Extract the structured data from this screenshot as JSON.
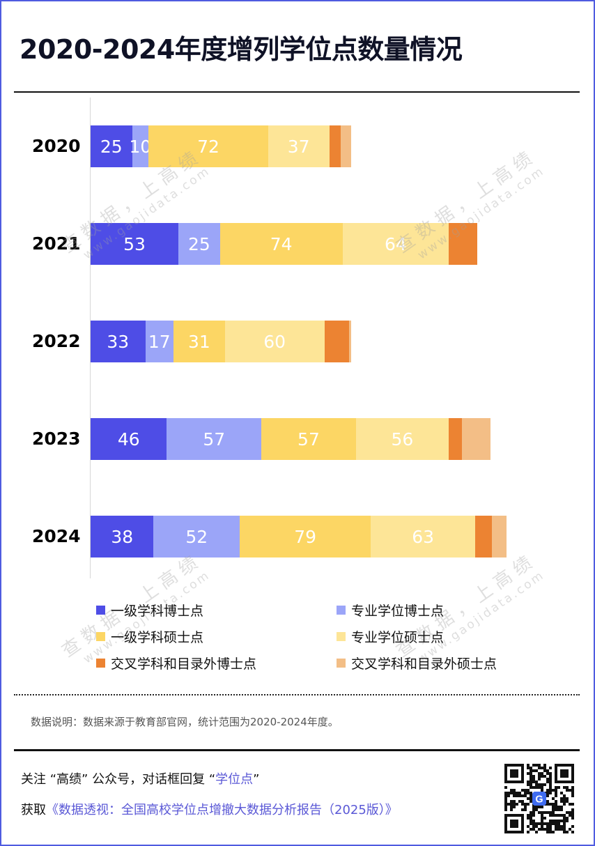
{
  "header": {
    "title": "2020-2024年度增列学位点数量情况"
  },
  "colors": {
    "border": "#4f5be0",
    "accent": "#5a58d6"
  },
  "chart_data": {
    "type": "bar",
    "orientation": "horizontal",
    "stacked": true,
    "title": "2020-2024年度增列学位点数量情况",
    "xlabel": "",
    "ylabel": "",
    "categories": [
      "2020",
      "2021",
      "2022",
      "2023",
      "2024"
    ],
    "xlim": [
      0,
      260
    ],
    "grid": false,
    "legend_position": "bottom",
    "series": [
      {
        "name": "一级学科博士点",
        "color": "#4e4de6",
        "values": [
          25,
          53,
          33,
          46,
          38
        ],
        "labeled": true
      },
      {
        "name": "专业学位博士点",
        "color": "#9ba5f8",
        "values": [
          10,
          25,
          17,
          57,
          52
        ],
        "labeled": true
      },
      {
        "name": "一级学科硕士点",
        "color": "#fcd664",
        "values": [
          72,
          74,
          31,
          57,
          79
        ],
        "labeled": true
      },
      {
        "name": "专业学位硕士点",
        "color": "#fde597",
        "values": [
          37,
          64,
          60,
          56,
          63
        ],
        "labeled": true
      },
      {
        "name": "交叉学科和目录外博士点",
        "color": "#ec8332",
        "values": [
          7,
          17,
          15,
          8,
          10
        ],
        "labeled": false
      },
      {
        "name": "交叉学科和目录外硕士点",
        "color": "#f3be86",
        "values": [
          6,
          0,
          1,
          17,
          9
        ],
        "labeled": false
      }
    ]
  },
  "legend": {
    "items": [
      {
        "label": "一级学科博士点",
        "color": "#4e4de6"
      },
      {
        "label": "专业学位博士点",
        "color": "#9ba5f8"
      },
      {
        "label": "一级学科硕士点",
        "color": "#fcd664"
      },
      {
        "label": "专业学位硕士点",
        "color": "#fde597"
      },
      {
        "label": "交叉学科和目录外博士点",
        "color": "#ec8332"
      },
      {
        "label": "交叉学科和目录外硕士点",
        "color": "#f3be86"
      }
    ]
  },
  "watermark": {
    "line1": "查数据，上高绩",
    "line2": "www.gaojidata.com"
  },
  "footer": {
    "note": "数据说明：数据来源于教育部官网，统计范围为2020-2024年度。",
    "cta_line1_prefix": "关注 “高绩” 公众号，对话框回复 “",
    "cta_line1_keyword": "学位点",
    "cta_line1_suffix": "”",
    "cta_line2_prefix": "获取",
    "cta_line2_report": "《数据透视：全国高校学位点增撤大数据分析报告（2025版）》",
    "qr_icon": "qr-code-icon",
    "qr_center_logo": "G"
  }
}
